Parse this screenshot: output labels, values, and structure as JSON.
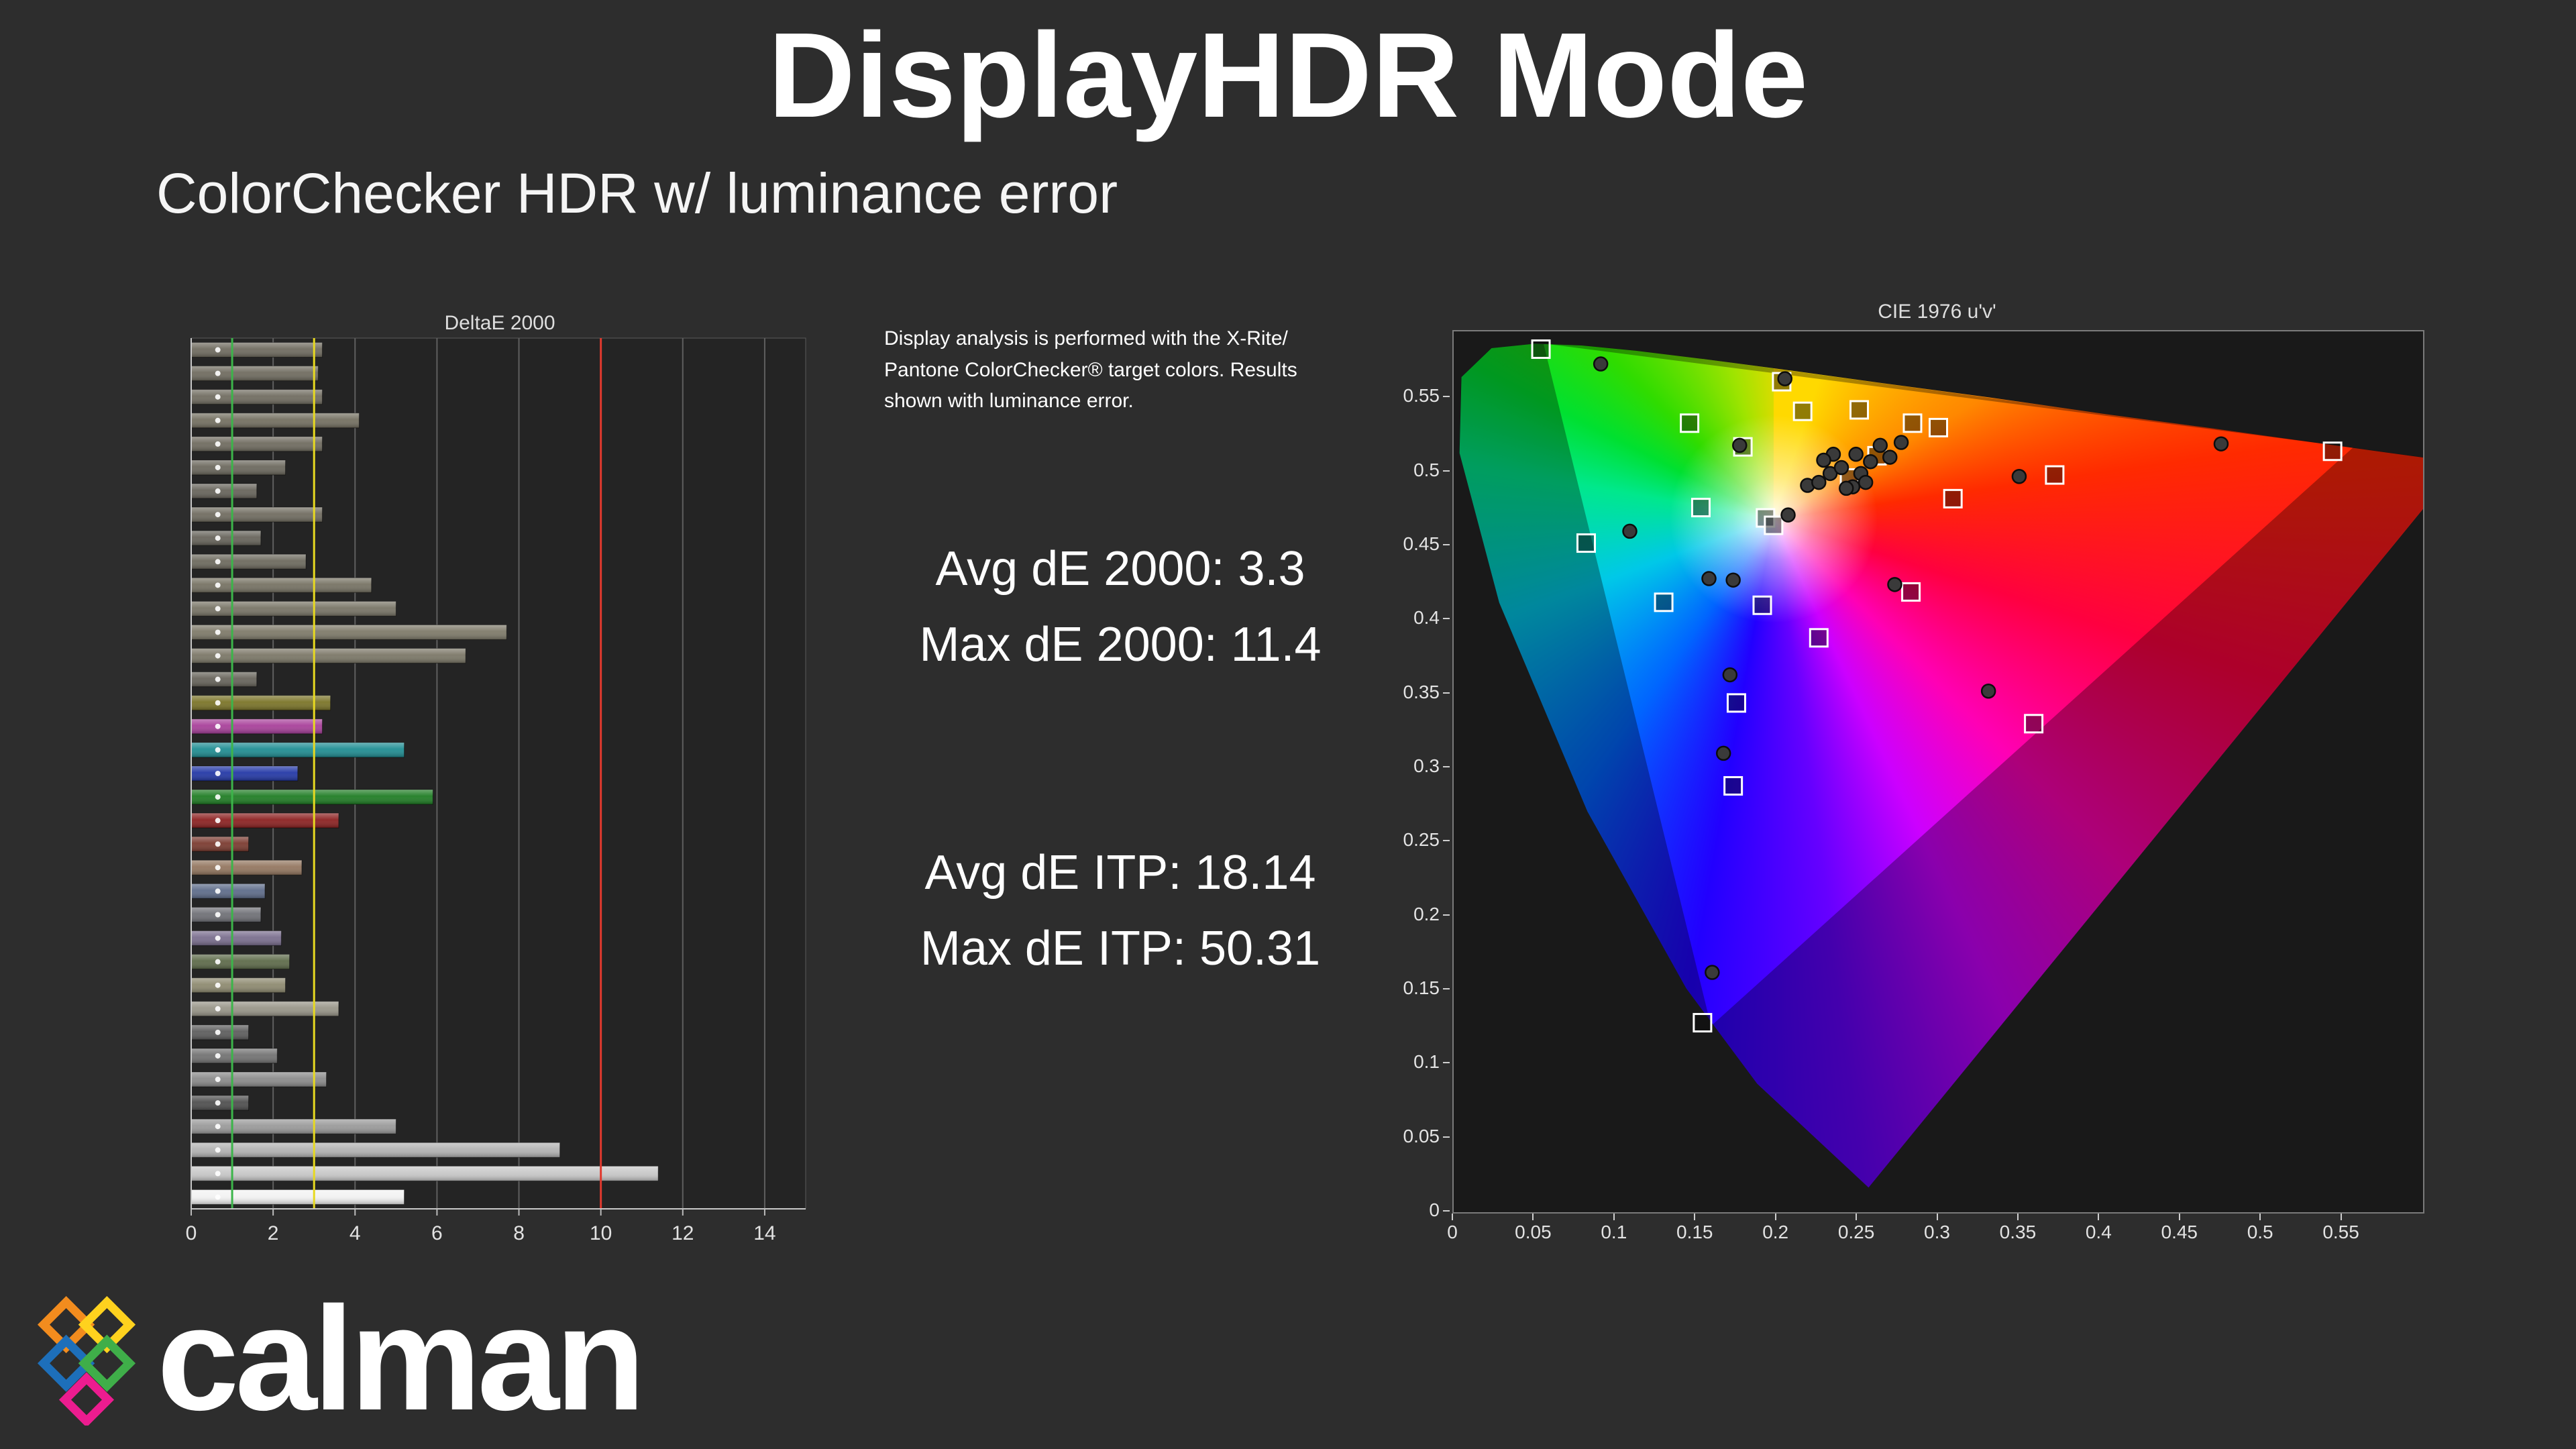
{
  "header": {
    "title": "DisplayHDR Mode",
    "subtitle": "ColorChecker HDR w/ luminance error"
  },
  "info": {
    "description": "Display analysis is performed with the X-Rite/ Pantone ColorChecker® target colors. Results shown with luminance error.",
    "avg_de2000": "Avg dE 2000: 3.3",
    "max_de2000": "Max dE 2000: 11.4",
    "avg_deitp": "Avg dE ITP: 18.14",
    "max_deitp": "Max dE ITP: 50.31"
  },
  "footer": {
    "logo_text": "calman",
    "logo_icon": "calman-diamond-logo",
    "logo_colors": [
      "#f28c1e",
      "#ffd21e",
      "#1d6fba",
      "#3fae49",
      "#ec1c8f"
    ]
  },
  "chart_data": [
    {
      "type": "bar",
      "title": "DeltaE 2000",
      "orientation": "horizontal",
      "xlim": [
        0,
        15
      ],
      "x_ticks": [
        0,
        2,
        4,
        6,
        8,
        10,
        12,
        14
      ],
      "grid_color": "#5f5f5f",
      "plot_bg": "#242424",
      "marker_value": 0.65,
      "reference_lines": [
        {
          "value": 1,
          "color": "#3cb54a"
        },
        {
          "value": 3,
          "color": "#e7d921"
        },
        {
          "value": 10,
          "color": "#e0392e"
        }
      ],
      "bars": [
        {
          "value": 3.2,
          "color": "#6f6b5f"
        },
        {
          "value": 3.1,
          "color": "#6f6b5f"
        },
        {
          "value": 3.2,
          "color": "#706c60"
        },
        {
          "value": 4.1,
          "color": "#747061"
        },
        {
          "value": 3.2,
          "color": "#6f6b5f"
        },
        {
          "value": 2.3,
          "color": "#6b685d"
        },
        {
          "value": 1.6,
          "color": "#67645b"
        },
        {
          "value": 3.2,
          "color": "#706c60"
        },
        {
          "value": 1.7,
          "color": "#67645b"
        },
        {
          "value": 2.8,
          "color": "#6d6a5e"
        },
        {
          "value": 4.4,
          "color": "#767263"
        },
        {
          "value": 5.0,
          "color": "#787466"
        },
        {
          "value": 7.7,
          "color": "#7e7a69"
        },
        {
          "value": 6.7,
          "color": "#7b7767"
        },
        {
          "value": 1.6,
          "color": "#67645b"
        },
        {
          "value": 3.4,
          "color": "#7b7428"
        },
        {
          "value": 3.2,
          "color": "#a8409a"
        },
        {
          "value": 5.2,
          "color": "#1f8d92"
        },
        {
          "value": 2.6,
          "color": "#2338a6"
        },
        {
          "value": 5.9,
          "color": "#1f7d24"
        },
        {
          "value": 3.6,
          "color": "#8c2121"
        },
        {
          "value": 1.4,
          "color": "#7b3b30"
        },
        {
          "value": 2.7,
          "color": "#93765f"
        },
        {
          "value": 1.8,
          "color": "#5e6c8a"
        },
        {
          "value": 1.7,
          "color": "#6f7076"
        },
        {
          "value": 2.2,
          "color": "#7a6e8e"
        },
        {
          "value": 2.4,
          "color": "#5e6b4a"
        },
        {
          "value": 2.3,
          "color": "#8e8a70"
        },
        {
          "value": 3.6,
          "color": "#989588"
        },
        {
          "value": 1.4,
          "color": "#5d5d5d"
        },
        {
          "value": 2.1,
          "color": "#727272"
        },
        {
          "value": 3.3,
          "color": "#8b8b8b"
        },
        {
          "value": 1.4,
          "color": "#4f4f4f"
        },
        {
          "value": 5.0,
          "color": "#9a9a9a"
        },
        {
          "value": 9.0,
          "color": "#b3b3b3"
        },
        {
          "value": 11.4,
          "color": "#c8c8c8"
        },
        {
          "value": 5.2,
          "color": "#f2f2f2"
        }
      ]
    },
    {
      "type": "scatter",
      "title": "CIE 1976 u'v'",
      "xlim": [
        0,
        0.6
      ],
      "ylim": [
        0,
        0.595
      ],
      "x_tick_labels": [
        "0",
        "0.05",
        "0.1",
        "0.15",
        "0.2",
        "0.25",
        "0.3",
        "0.35",
        "0.4",
        "0.45",
        "0.5",
        "0.55"
      ],
      "y_tick_labels": [
        "0",
        "0.05",
        "0.1",
        "0.15",
        "0.2",
        "0.25",
        "0.3",
        "0.35",
        "0.4",
        "0.45",
        "0.5",
        "0.55"
      ],
      "gamut_triangle": {
        "name": "BT.2020",
        "vertices": [
          [
            0.0556,
            0.5868
          ],
          [
            0.5566,
            0.5165
          ],
          [
            0.1593,
            0.1258
          ]
        ]
      },
      "targets": [
        [
          0.054,
          0.583
        ],
        [
          0.203,
          0.561
        ],
        [
          0.146,
          0.533
        ],
        [
          0.179,
          0.517
        ],
        [
          0.216,
          0.541
        ],
        [
          0.251,
          0.542
        ],
        [
          0.284,
          0.533
        ],
        [
          0.3,
          0.53
        ],
        [
          0.262,
          0.511
        ],
        [
          0.245,
          0.496
        ],
        [
          0.309,
          0.482
        ],
        [
          0.372,
          0.498
        ],
        [
          0.544,
          0.514
        ],
        [
          0.082,
          0.452
        ],
        [
          0.153,
          0.476
        ],
        [
          0.193,
          0.469
        ],
        [
          0.198,
          0.464
        ],
        [
          0.13,
          0.412
        ],
        [
          0.191,
          0.41
        ],
        [
          0.226,
          0.388
        ],
        [
          0.283,
          0.419
        ],
        [
          0.175,
          0.344
        ],
        [
          0.359,
          0.33
        ],
        [
          0.173,
          0.288
        ],
        [
          0.154,
          0.128
        ]
      ],
      "measurements": [
        [
          0.091,
          0.573
        ],
        [
          0.205,
          0.563
        ],
        [
          0.177,
          0.518
        ],
        [
          0.219,
          0.491
        ],
        [
          0.233,
          0.499
        ],
        [
          0.24,
          0.503
        ],
        [
          0.247,
          0.49
        ],
        [
          0.252,
          0.499
        ],
        [
          0.258,
          0.507
        ],
        [
          0.264,
          0.518
        ],
        [
          0.27,
          0.51
        ],
        [
          0.277,
          0.52
        ],
        [
          0.235,
          0.512
        ],
        [
          0.226,
          0.493
        ],
        [
          0.35,
          0.497
        ],
        [
          0.475,
          0.519
        ],
        [
          0.109,
          0.46
        ],
        [
          0.158,
          0.428
        ],
        [
          0.173,
          0.427
        ],
        [
          0.207,
          0.471
        ],
        [
          0.273,
          0.424
        ],
        [
          0.171,
          0.363
        ],
        [
          0.331,
          0.352
        ],
        [
          0.167,
          0.31
        ],
        [
          0.16,
          0.162
        ],
        [
          0.243,
          0.489
        ],
        [
          0.229,
          0.508
        ],
        [
          0.255,
          0.493
        ],
        [
          0.249,
          0.512
        ]
      ]
    }
  ]
}
